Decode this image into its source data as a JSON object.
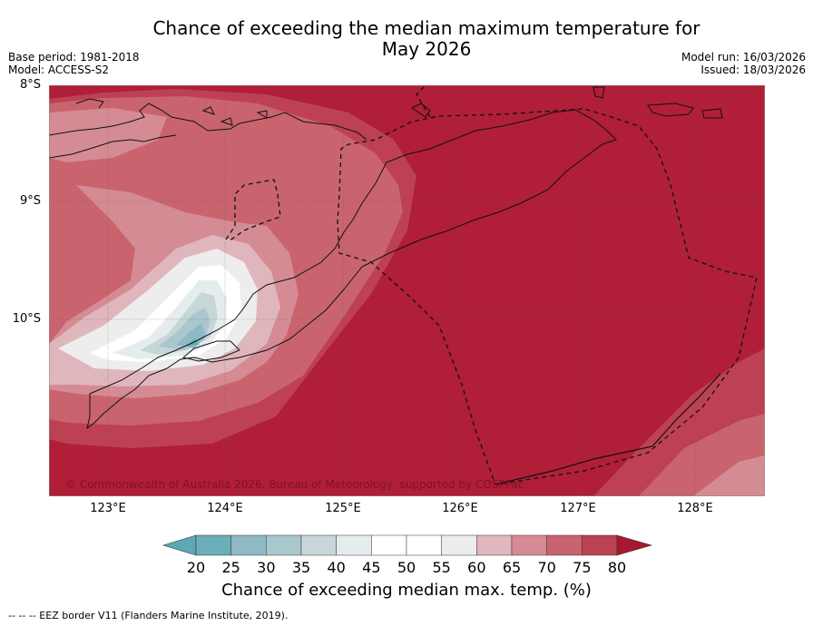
{
  "title": {
    "line1": "Chance of exceeding the median maximum temperature for",
    "line2": "May 2026"
  },
  "meta": {
    "base_period": "Base period: 1981-2018",
    "model": "Model: ACCESS-S2",
    "model_run": "Model run: 16/03/2026",
    "issued": "Issued: 18/03/2026"
  },
  "map": {
    "lat_labels": [
      "8°S",
      "9°S",
      "10°S"
    ],
    "lon_labels": [
      "123°E",
      "124°E",
      "125°E",
      "126°E",
      "127°E",
      "128°E"
    ],
    "copyright": "© Commonwealth of Australia 2026, Bureau of Meteorology, supported by COSPPac"
  },
  "colorbar": {
    "ticks": [
      "20",
      "25",
      "30",
      "35",
      "40",
      "45",
      "50",
      "55",
      "60",
      "65",
      "70",
      "75",
      "80"
    ],
    "colors": [
      "#5ea8b5",
      "#6aaeba",
      "#8fb9c4",
      "#a9c8cd",
      "#c6d6d9",
      "#e5ecee",
      "#ffffff",
      "#ffffff",
      "#ededed",
      "#e1b6bf",
      "#d58b94",
      "#c9636f",
      "#bb4251",
      "#a8172f"
    ],
    "label": "Chance of exceeding median max. temp. (%)"
  },
  "footnote": "--  --  -- EEZ border V11 (Flanders Marine Institute, 2019)."
}
